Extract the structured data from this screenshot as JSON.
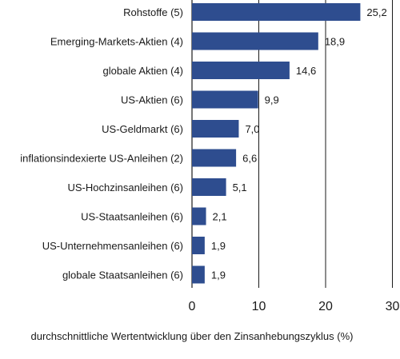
{
  "chart_data": {
    "type": "bar",
    "orientation": "horizontal",
    "categories": [
      "Rohstoffe (5)",
      "Emerging-Markets-Aktien (4)",
      "globale Aktien (4)",
      "US-Aktien (6)",
      "US-Geldmarkt (6)",
      "inflationsindexierte US-Anleihen (2)",
      "US-Hochzinsanleihen (6)",
      "US-Staatsanleihen (6)",
      "US-Unternehmensanleihen (6)",
      "globale Staatsanleihen (6)"
    ],
    "values": [
      25.2,
      18.9,
      14.6,
      9.9,
      7.0,
      6.6,
      5.1,
      2.1,
      1.9,
      1.9
    ],
    "value_labels": [
      "25,2",
      "18,9",
      "14,6",
      "9,9",
      "7,0",
      "6,6",
      "5,1",
      "2,1",
      "1,9",
      "1,9"
    ],
    "xlim": [
      0,
      30
    ],
    "xticks": [
      0,
      10,
      20,
      30
    ],
    "xtick_labels": [
      "0",
      "10",
      "20",
      "30"
    ],
    "xlabel": "durchschnittliche Wertentwicklung über den Zinsanhebungszyklus (%)",
    "title": "",
    "grid": "vertical",
    "bar_color": "#2e4d8f",
    "grid_color": "#1a1a1a"
  }
}
